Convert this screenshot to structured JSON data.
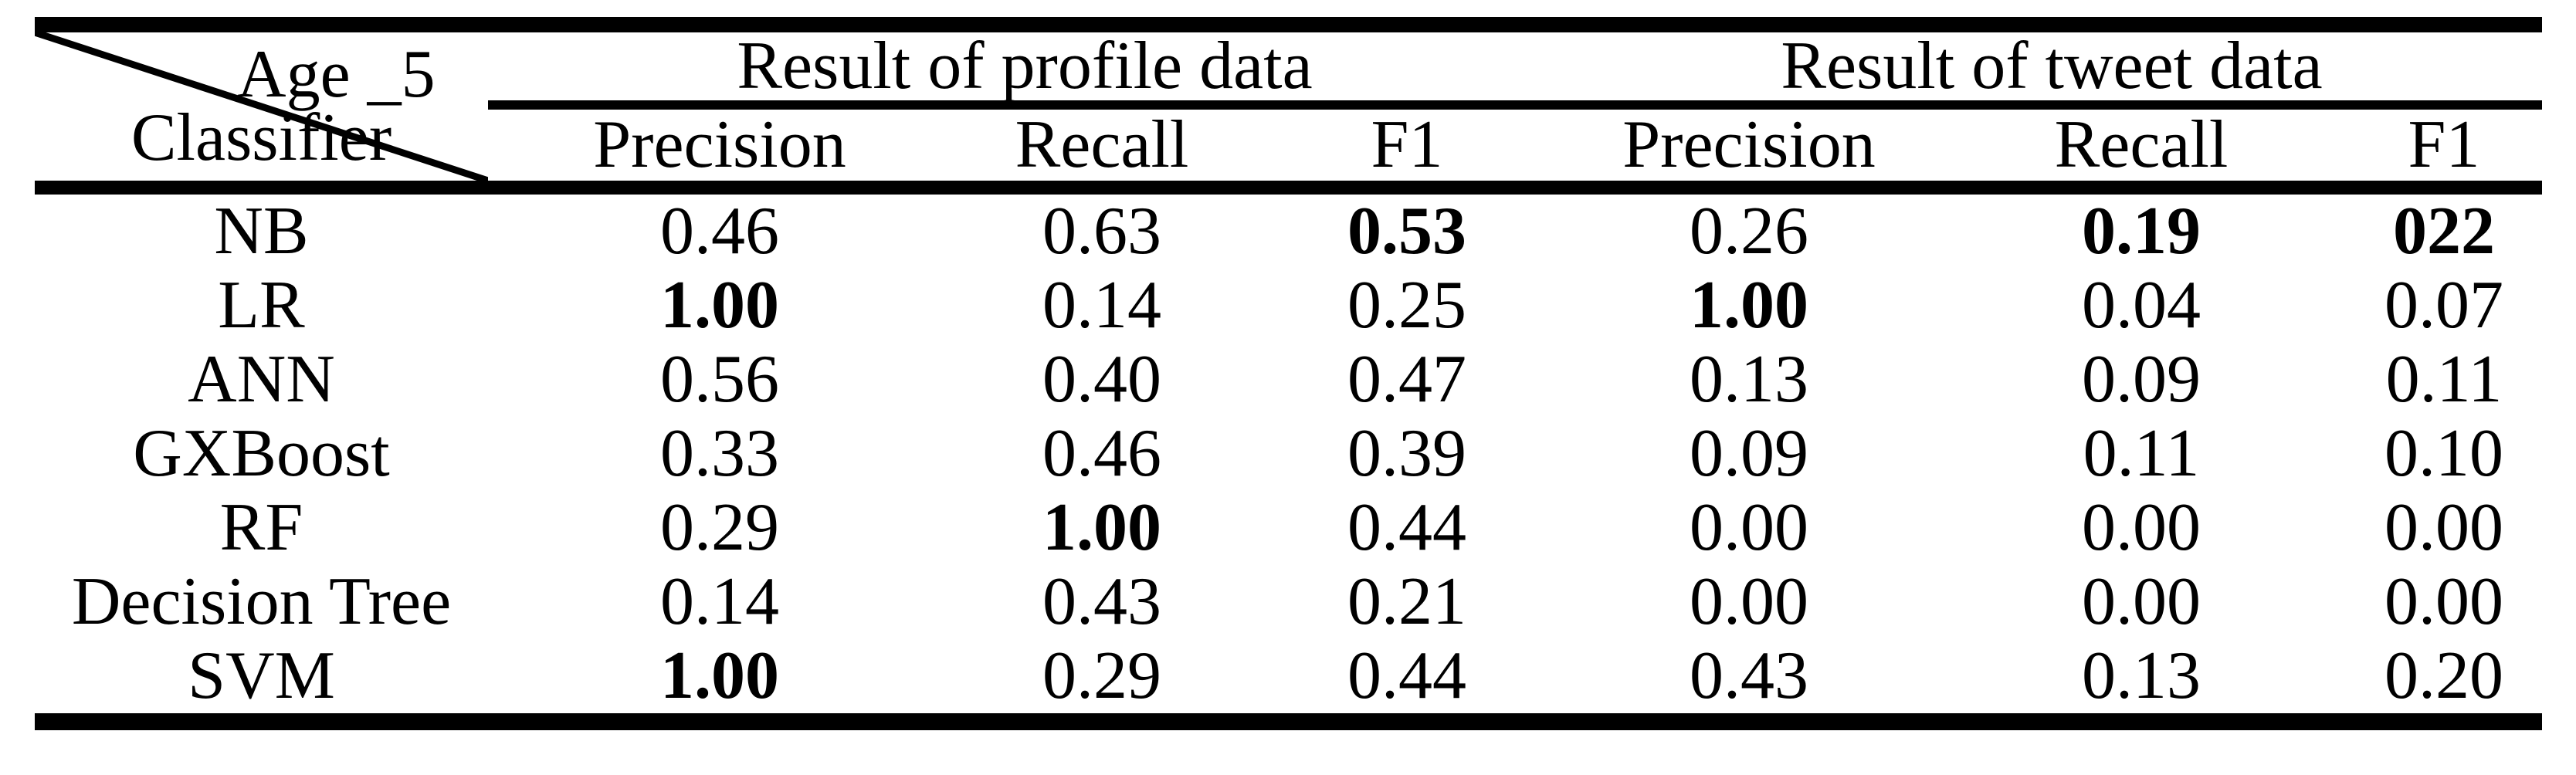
{
  "page": {
    "background_color": "#ffffff",
    "text_color": "#000000",
    "rule_color": "#000000"
  },
  "table": {
    "corner": {
      "top_label": "Age _5",
      "bottom_label": "Classifier"
    },
    "group_headers": {
      "profile": "Result of profile data",
      "tweet": "Result of tweet data"
    },
    "metric_headers": [
      "Precision",
      "Recall",
      "F1",
      "Precision",
      "Recall",
      "F1"
    ],
    "rows": [
      {
        "classifier": "NB",
        "values": [
          "0.46",
          "0.63",
          "0.53",
          "0.26",
          "0.19",
          "022"
        ],
        "bold": [
          false,
          false,
          true,
          false,
          true,
          true
        ]
      },
      {
        "classifier": "LR",
        "values": [
          "1.00",
          "0.14",
          "0.25",
          "1.00",
          "0.04",
          "0.07"
        ],
        "bold": [
          true,
          false,
          false,
          true,
          false,
          false
        ]
      },
      {
        "classifier": "ANN",
        "values": [
          "0.56",
          "0.40",
          "0.47",
          "0.13",
          "0.09",
          "0.11"
        ],
        "bold": [
          false,
          false,
          false,
          false,
          false,
          false
        ]
      },
      {
        "classifier": "GXBoost",
        "values": [
          "0.33",
          "0.46",
          "0.39",
          "0.09",
          "0.11",
          "0.10"
        ],
        "bold": [
          false,
          false,
          false,
          false,
          false,
          false
        ]
      },
      {
        "classifier": "RF",
        "values": [
          "0.29",
          "1.00",
          "0.44",
          "0.00",
          "0.00",
          "0.00"
        ],
        "bold": [
          false,
          true,
          false,
          false,
          false,
          false
        ]
      },
      {
        "classifier": "Decision Tree",
        "values": [
          "0.14",
          "0.43",
          "0.21",
          "0.00",
          "0.00",
          "0.00"
        ],
        "bold": [
          false,
          false,
          false,
          false,
          false,
          false
        ]
      },
      {
        "classifier": "SVM",
        "values": [
          "1.00",
          "0.29",
          "0.44",
          "0.43",
          "0.13",
          "0.20"
        ],
        "bold": [
          true,
          false,
          false,
          false,
          false,
          false
        ]
      }
    ]
  }
}
